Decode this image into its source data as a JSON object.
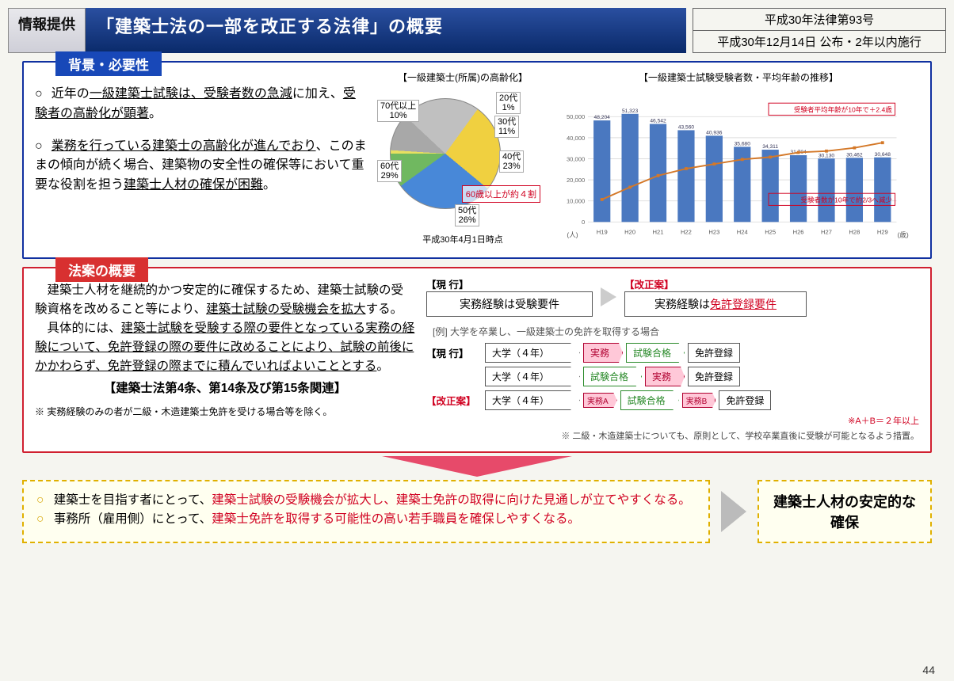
{
  "header": {
    "info_tag": "情報提供",
    "title": "「建築士法の一部を改正する法律」の概要",
    "law_no": "平成30年法律第93号",
    "law_date": "平成30年12月14日 公布・2年以内施行"
  },
  "section1": {
    "label": "背景・必要性",
    "bullet1_a": "近年の",
    "bullet1_b": "一級建築士試験は、受験者数の急減",
    "bullet1_c": "に加え、",
    "bullet1_d": "受験者の高齢化が顕著",
    "bullet1_e": "。",
    "bullet2_a": "業務を行っている建築士の高齢化が進んでおり",
    "bullet2_b": "、このままの傾向が続く場合、建築物の安全性の確保等において重要な役割を担う",
    "bullet2_c": "建築士人材の確保が困難",
    "bullet2_d": "。"
  },
  "pie": {
    "title": "【一級建築士(所属)の高齢化】",
    "caption": "平成30年4月1日時点",
    "labels": [
      "20代",
      "30代",
      "40代",
      "50代",
      "60代",
      "70代以上"
    ],
    "values": [
      1,
      11,
      23,
      26,
      29,
      10
    ],
    "colors": [
      "#e8e060",
      "#a8a8a8",
      "#c0c0c0",
      "#f0d040",
      "#4888d8",
      "#70b860"
    ],
    "note": "60歳以上が約４割"
  },
  "bar": {
    "title": "【一級建築士試験受験者数・平均年齢の推移】",
    "years": [
      "H19",
      "H20",
      "H21",
      "H22",
      "H23",
      "H24",
      "H25",
      "H26",
      "H27",
      "H28",
      "H29"
    ],
    "examinees": [
      48204,
      51323,
      46542,
      43560,
      40936,
      35680,
      34311,
      31704,
      30130,
      30462,
      30648
    ],
    "ages": [
      31.97,
      32.5,
      33.0,
      33.3,
      33.5,
      33.7,
      33.8,
      34.0,
      34.06,
      34.2,
      34.42
    ],
    "ymax": 55000,
    "age_min": 31,
    "age_max": 36,
    "bar_color": "#4a78c0",
    "line_color": "#d47828",
    "note_top": "受験者平均年齢が10年で＋2.4歳",
    "note_bot": "受験者数が10年で約2/3へ減少",
    "y_label": "(人)",
    "y2_label": "(歳)"
  },
  "section2": {
    "label": "法案の概要",
    "p1_a": "建築士人材を継続的かつ安定的に確保するため、建築士試験の受験資格を改めること等により、",
    "p1_b": "建築士試験の受験機会を拡大",
    "p1_c": "する。",
    "p2_a": "具体的には、",
    "p2_b": "建築士試験を受験する際の要件となっている実務の経験について、免許登録の際の要件に改めることにより、試験の前後にかかわらず、免許登録の際までに積んでいればよいこととする",
    "p2_c": "。",
    "ref": "【建築士法第4条、第14条及び第15条関連】",
    "note": "※ 実務経験のみの者が二級・木造建築士免許を受ける場合等を除く。"
  },
  "flow": {
    "current_hdr": "【現 行】",
    "revised_hdr": "【改正案】",
    "box_current": "実務経験は受験要件",
    "box_revised_a": "実務経験は",
    "box_revised_b": "免許登録要件",
    "example": "[例] 大学を卒業し、一級建築士の免許を取得する場合",
    "row_current": "【現 行】",
    "row_revised": "【改正案】",
    "uni": "大学（４年）",
    "work": "実務",
    "workA": "実務A",
    "workB": "実務B",
    "pass": "試験合格",
    "license": "免許登録",
    "ab_note": "※A＋B＝２年以上",
    "foot": "※ 二級・木造建築士についても、原則として、学校卒業直後に受験が可能となるよう措置。"
  },
  "bottom": {
    "b1_a": "建築士を目指す者にとって、",
    "b1_b": "建築士試験の受験機会が拡大し、建築士免許の取得に向けた見通しが立てやすくなる。",
    "b2_a": "事務所（雇用側）にとって、",
    "b2_b": "建築士免許を取得する可能性の高い若手職員を確保しやすくなる。",
    "result": "建築士人材の安定的な確保"
  },
  "page": "44"
}
